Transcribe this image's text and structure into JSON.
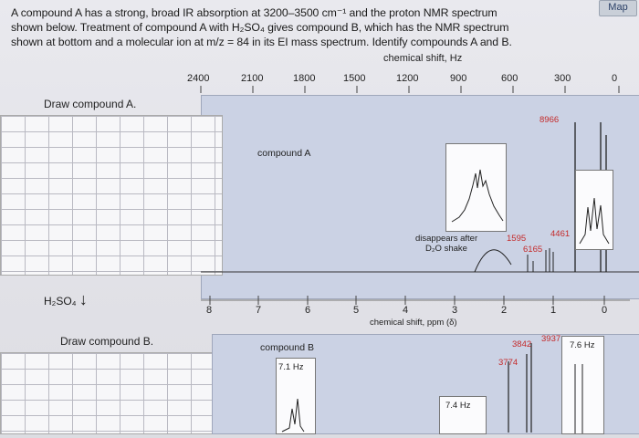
{
  "problem": {
    "line1": "A compound A has a strong, broad IR absorption at 3200–3500 cm⁻¹ and the proton NMR spectrum",
    "line2": "shown below. Treatment of compound A with H₂SO₄ gives compound B, which has the NMR spectrum",
    "line3": "shown at bottom and a molecular ion at m/z = 84 in its EI mass spectrum. Identify compounds A and B."
  },
  "map_button": "Map",
  "top_axis": {
    "title": "chemical shift, Hz",
    "ticks": [
      "2400",
      "2100",
      "1800",
      "1500",
      "1200",
      "900",
      "600",
      "300",
      "0"
    ]
  },
  "draw_a_label": "Draw compound A.",
  "draw_b_label": "Draw compound B.",
  "reagent": "H₂SO₄",
  "spectrum_a": {
    "label": "compound A",
    "disappears_note_1": "disappears after",
    "disappears_note_2": "D₂O shake",
    "peaks": [
      "8966",
      "4461",
      "1595",
      "6165"
    ]
  },
  "ppm_axis": {
    "title": "chemical shift, ppm (δ)",
    "ticks": [
      "8",
      "7",
      "6",
      "5",
      "4",
      "3",
      "2",
      "1",
      "0"
    ]
  },
  "spectrum_b": {
    "label": "compound B",
    "coupling_1": "7.1 Hz",
    "coupling_2": "7.4 Hz",
    "coupling_3": "7.6 Hz",
    "peaks": [
      "3842",
      "3937",
      "3774"
    ]
  },
  "colors": {
    "peak_red": "#c42a2a",
    "spectrum_bg": "#cbd2e4"
  }
}
